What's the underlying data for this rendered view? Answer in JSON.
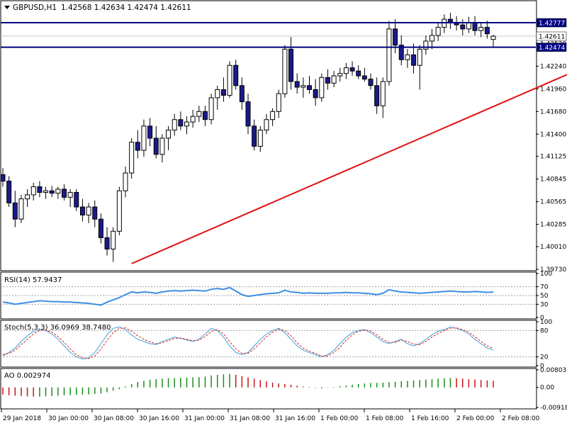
{
  "header": {
    "symbol": "GBPUSD,H1",
    "ohlc": "1.42568 1.42634 1.42474 1.42611"
  },
  "rsi_label": "RSI(14) 57.9437",
  "stoch_label": "Stoch(5,3,3) 36.0969 38.7480",
  "ao_label": "AO 0.002974",
  "colors": {
    "bull_candle": "#ffffff",
    "bear_candle": "#1a1a8c",
    "hline": "#000080",
    "trendline": "#e01010",
    "rsi": "#3c8ee6",
    "stoch_main": "#3ca0d8",
    "stoch_signal": "#e02020",
    "ao_up": "#1a8c1a",
    "ao_down": "#c81414"
  },
  "chart_data": [
    {
      "type": "candlestick",
      "title": "GBPUSD,H1",
      "ylim": [
        1.3973,
        1.429
      ],
      "y_ticks": [
        "1.39730",
        "1.40010",
        "1.40285",
        "1.40565",
        "1.40845",
        "1.41125",
        "1.41400",
        "1.41680",
        "1.41960",
        "1.42240",
        "1.42520",
        "1.42800"
      ],
      "x_tick_labels": [
        "29 Jan 2018",
        "30 Jan 00:00",
        "30 Jan 08:00",
        "30 Jan 16:00",
        "31 Jan 00:00",
        "31 Jan 08:00",
        "31 Jan 16:00",
        "1 Feb 00:00",
        "1 Feb 08:00",
        "1 Feb 16:00",
        "2 Feb 00:00",
        "2 Feb 08:00"
      ],
      "price_labels": {
        "level_high": "1.42777",
        "current": "1.42611",
        "level_low": "1.42474"
      },
      "horizontal_levels": [
        1.42777,
        1.42474
      ],
      "trendline": {
        "from_bar": 21,
        "from_price": 1.398,
        "to_bar": 111,
        "to_price": 1.4276
      },
      "ohlc": [
        [
          1.409,
          1.4098,
          1.4075,
          1.4082
        ],
        [
          1.4082,
          1.4088,
          1.405,
          1.4055
        ],
        [
          1.4055,
          1.407,
          1.4025,
          1.4035
        ],
        [
          1.4035,
          1.4065,
          1.403,
          1.406
        ],
        [
          1.406,
          1.4072,
          1.405,
          1.4065
        ],
        [
          1.4065,
          1.408,
          1.4058,
          1.4075
        ],
        [
          1.4075,
          1.4082,
          1.4062,
          1.4068
        ],
        [
          1.4068,
          1.4075,
          1.406,
          1.407
        ],
        [
          1.407,
          1.4076,
          1.4062,
          1.4067
        ],
        [
          1.4067,
          1.4075,
          1.406,
          1.4072
        ],
        [
          1.4072,
          1.4078,
          1.4058,
          1.4062
        ],
        [
          1.4062,
          1.4072,
          1.405,
          1.4068
        ],
        [
          1.4068,
          1.4072,
          1.4045,
          1.405
        ],
        [
          1.405,
          1.406,
          1.4032,
          1.404
        ],
        [
          1.404,
          1.4055,
          1.403,
          1.405
        ],
        [
          1.405,
          1.4058,
          1.4025,
          1.4035
        ],
        [
          1.4035,
          1.4042,
          1.4005,
          1.4012
        ],
        [
          1.4012,
          1.4025,
          1.399,
          1.3998
        ],
        [
          1.3998,
          1.4025,
          1.3982,
          1.402
        ],
        [
          1.402,
          1.4075,
          1.4015,
          1.407
        ],
        [
          1.407,
          1.41,
          1.4062,
          1.4092
        ],
        [
          1.4092,
          1.4135,
          1.4085,
          1.413
        ],
        [
          1.413,
          1.4145,
          1.411,
          1.412
        ],
        [
          1.412,
          1.4158,
          1.4112,
          1.415
        ],
        [
          1.415,
          1.416,
          1.4125,
          1.4135
        ],
        [
          1.4135,
          1.415,
          1.411,
          1.4115
        ],
        [
          1.4115,
          1.414,
          1.4105,
          1.4135
        ],
        [
          1.4135,
          1.415,
          1.412,
          1.4145
        ],
        [
          1.4145,
          1.4165,
          1.4138,
          1.4158
        ],
        [
          1.4158,
          1.4168,
          1.4145,
          1.415
        ],
        [
          1.415,
          1.4162,
          1.414,
          1.4155
        ],
        [
          1.4155,
          1.417,
          1.4148,
          1.4162
        ],
        [
          1.4162,
          1.4175,
          1.4155,
          1.4168
        ],
        [
          1.4168,
          1.4175,
          1.415,
          1.4158
        ],
        [
          1.4158,
          1.419,
          1.4152,
          1.4185
        ],
        [
          1.4185,
          1.42,
          1.417,
          1.4195
        ],
        [
          1.4195,
          1.421,
          1.418,
          1.4188
        ],
        [
          1.4188,
          1.423,
          1.4185,
          1.4225
        ],
        [
          1.4225,
          1.4232,
          1.4195,
          1.42
        ],
        [
          1.42,
          1.421,
          1.417,
          1.418
        ],
        [
          1.418,
          1.419,
          1.414,
          1.415
        ],
        [
          1.415,
          1.4158,
          1.412,
          1.4125
        ],
        [
          1.4125,
          1.415,
          1.4118,
          1.4145
        ],
        [
          1.4145,
          1.4165,
          1.414,
          1.4158
        ],
        [
          1.4158,
          1.4172,
          1.415,
          1.4168
        ],
        [
          1.4168,
          1.4195,
          1.416,
          1.419
        ],
        [
          1.419,
          1.425,
          1.4185,
          1.4245
        ],
        [
          1.4245,
          1.426,
          1.4195,
          1.4205
        ],
        [
          1.4205,
          1.4215,
          1.419,
          1.4198
        ],
        [
          1.4198,
          1.421,
          1.4185,
          1.42
        ],
        [
          1.42,
          1.4212,
          1.419,
          1.4195
        ],
        [
          1.4195,
          1.4208,
          1.4175,
          1.4185
        ],
        [
          1.4185,
          1.4215,
          1.418,
          1.421
        ],
        [
          1.421,
          1.422,
          1.4195,
          1.4203
        ],
        [
          1.4203,
          1.4218,
          1.4198,
          1.4212
        ],
        [
          1.4212,
          1.4222,
          1.4205,
          1.4215
        ],
        [
          1.4215,
          1.4228,
          1.4208,
          1.4222
        ],
        [
          1.4222,
          1.423,
          1.4212,
          1.4218
        ],
        [
          1.4218,
          1.4225,
          1.4208,
          1.4212
        ],
        [
          1.4212,
          1.4222,
          1.4205,
          1.4208
        ],
        [
          1.4208,
          1.4215,
          1.4195,
          1.42
        ],
        [
          1.42,
          1.421,
          1.4165,
          1.4175
        ],
        [
          1.4175,
          1.421,
          1.416,
          1.4205
        ],
        [
          1.4205,
          1.428,
          1.42,
          1.427
        ],
        [
          1.427,
          1.4282,
          1.424,
          1.425
        ],
        [
          1.425,
          1.4262,
          1.4225,
          1.4232
        ],
        [
          1.4232,
          1.4245,
          1.4222,
          1.4238
        ],
        [
          1.4238,
          1.4252,
          1.4215,
          1.4225
        ],
        [
          1.4225,
          1.425,
          1.4195,
          1.4245
        ],
        [
          1.4245,
          1.4262,
          1.4238,
          1.4255
        ],
        [
          1.4255,
          1.427,
          1.4245,
          1.4262
        ],
        [
          1.4262,
          1.4278,
          1.4255,
          1.4272
        ],
        [
          1.4272,
          1.4288,
          1.4265,
          1.4282
        ],
        [
          1.4282,
          1.429,
          1.427,
          1.4278
        ],
        [
          1.4278,
          1.4286,
          1.4268,
          1.4275
        ],
        [
          1.4275,
          1.4282,
          1.4262,
          1.427
        ],
        [
          1.427,
          1.4285,
          1.4265,
          1.4278
        ],
        [
          1.4278,
          1.4286,
          1.4262,
          1.4268
        ],
        [
          1.4268,
          1.4278,
          1.426,
          1.4272
        ],
        [
          1.4272,
          1.428,
          1.4258,
          1.4264
        ],
        [
          1.4257,
          1.4263,
          1.4247,
          1.4261
        ]
      ]
    },
    {
      "type": "line",
      "title": "RSI(14) 57.9437",
      "ylim": [
        0,
        100
      ],
      "y_ticks": [
        "100",
        "70",
        "50",
        "30",
        "0"
      ],
      "levels": [
        70,
        50,
        30
      ],
      "values": [
        35,
        33,
        30,
        32,
        34,
        36,
        38,
        37,
        36,
        36,
        35,
        35,
        34,
        33,
        32,
        30,
        28,
        35,
        40,
        45,
        52,
        58,
        56,
        58,
        57,
        55,
        58,
        60,
        61,
        60,
        61,
        62,
        61,
        60,
        64,
        66,
        64,
        68,
        60,
        52,
        48,
        50,
        52,
        54,
        55,
        56,
        62,
        58,
        57,
        55,
        56,
        55,
        55,
        55,
        56,
        56,
        57,
        56,
        56,
        55,
        54,
        52,
        55,
        63,
        60,
        58,
        57,
        56,
        55,
        56,
        57,
        58,
        59,
        60,
        59,
        58,
        58,
        59,
        58,
        57,
        58
      ]
    },
    {
      "type": "line",
      "title": "Stoch(5,3,3) 36.0969 38.7480",
      "ylim": [
        0,
        100
      ],
      "y_ticks": [
        "100",
        "80",
        "20",
        "0"
      ],
      "levels": [
        80,
        20
      ],
      "series": [
        {
          "name": "main",
          "values": [
            22,
            30,
            40,
            55,
            68,
            78,
            82,
            80,
            72,
            60,
            45,
            30,
            20,
            15,
            18,
            30,
            50,
            70,
            85,
            88,
            82,
            70,
            60,
            55,
            50,
            48,
            55,
            60,
            65,
            62,
            58,
            55,
            60,
            72,
            85,
            80,
            65,
            45,
            30,
            25,
            30,
            45,
            60,
            72,
            80,
            85,
            75,
            60,
            45,
            35,
            30,
            25,
            20,
            25,
            35,
            50,
            65,
            75,
            80,
            82,
            75,
            65,
            55,
            50,
            55,
            60,
            50,
            45,
            50,
            60,
            70,
            78,
            82,
            88,
            85,
            80,
            72,
            60,
            50,
            40,
            36
          ]
        },
        {
          "name": "signal",
          "values": [
            25,
            28,
            35,
            48,
            60,
            72,
            80,
            81,
            76,
            66,
            53,
            38,
            25,
            18,
            16,
            22,
            38,
            58,
            75,
            85,
            86,
            78,
            68,
            60,
            54,
            50,
            52,
            57,
            62,
            63,
            60,
            57,
            58,
            66,
            78,
            82,
            72,
            55,
            38,
            28,
            28,
            38,
            52,
            66,
            76,
            83,
            80,
            68,
            52,
            40,
            33,
            28,
            22,
            22,
            30,
            42,
            58,
            70,
            78,
            81,
            79,
            70,
            60,
            53,
            53,
            58,
            55,
            49,
            48,
            55,
            65,
            73,
            80,
            85,
            86,
            82,
            76,
            66,
            55,
            45,
            39
          ]
        }
      ]
    },
    {
      "type": "bar",
      "title": "AO 0.002974",
      "ylim": [
        -0.00918,
        0.00803
      ],
      "y_ticks": [
        "0.00803",
        "0.00",
        "-0.00918"
      ],
      "values": [
        -0.0032,
        -0.0036,
        -0.0038,
        -0.004,
        -0.0041,
        -0.0042,
        -0.0042,
        -0.0041,
        -0.004,
        -0.0038,
        -0.0036,
        -0.0035,
        -0.0034,
        -0.0033,
        -0.0032,
        -0.003,
        -0.0028,
        -0.0022,
        -0.0015,
        -0.0008,
        0.0005,
        0.0015,
        0.0025,
        0.003,
        0.0035,
        0.0038,
        0.004,
        0.0042,
        0.0043,
        0.0044,
        0.0045,
        0.0046,
        0.0047,
        0.005,
        0.0055,
        0.0058,
        0.006,
        0.0062,
        0.0058,
        0.0052,
        0.0046,
        0.004,
        0.0034,
        0.0028,
        0.0022,
        0.0018,
        0.0016,
        0.0012,
        0.0008,
        0.0004,
        0.0002,
        -0.0002,
        -0.0004,
        -0.0002,
        0.0002,
        0.0006,
        0.0008,
        0.0012,
        0.0016,
        0.0018,
        0.002,
        0.0021,
        0.0022,
        0.0024,
        0.0026,
        0.0028,
        0.003,
        0.0032,
        0.0034,
        0.0036,
        0.0038,
        0.004,
        0.0042,
        0.0043,
        0.0042,
        0.004,
        0.0038,
        0.0036,
        0.0034,
        0.0032,
        0.003
      ]
    }
  ]
}
